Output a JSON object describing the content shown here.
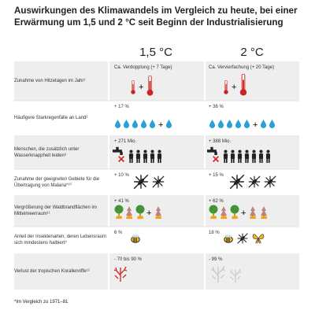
{
  "title": "Auswirkungen des Klimawandels im Vergleich zu heute, bei einer Erwärmung um 1,5 und 2 °C seit Beginn der Industrialisierung",
  "columns": [
    "1,5 °C",
    "2 °C"
  ],
  "rows": [
    {
      "label": "Zunahme von Hitzetagen im Jahr¹",
      "col1": "Ca. Verdopplung (+ 7 Tage)",
      "col2": "Ca. Vervierfachung (+ 20 Tage)"
    },
    {
      "label": "Häufigere Starkregenfälle an Land²",
      "col1": "+ 17 %",
      "col2": "+ 36 %"
    },
    {
      "label": "Menschen, die zusätzlich unter Wasserknappheit leiden³",
      "col1": "+ 271 Mio.",
      "col2": "+ 388 Mio."
    },
    {
      "label": "Zunahme der geeigneten Gebiete für die Übertragung von Malaria*¹⁰",
      "col1": "+ 10 %",
      "col2": "+ 15 %"
    },
    {
      "label": "Vergrößerung der Waldbrandflächen im Mittelmeerraum¹¹",
      "col1": "+ 41 %",
      "col2": "+ 62 %"
    },
    {
      "label": "Anteil der Insektenarten, deren Lebensraum sich mindestens halbiert⁹",
      "col1": "6 %",
      "col2": "18 %"
    },
    {
      "label": "Verlust der tropischen Korallenriffe¹²",
      "col1": "- 70 bis 90 %",
      "col2": "- 99 %"
    }
  ],
  "footnote": "*Im Vergleich zu 1971–81"
}
